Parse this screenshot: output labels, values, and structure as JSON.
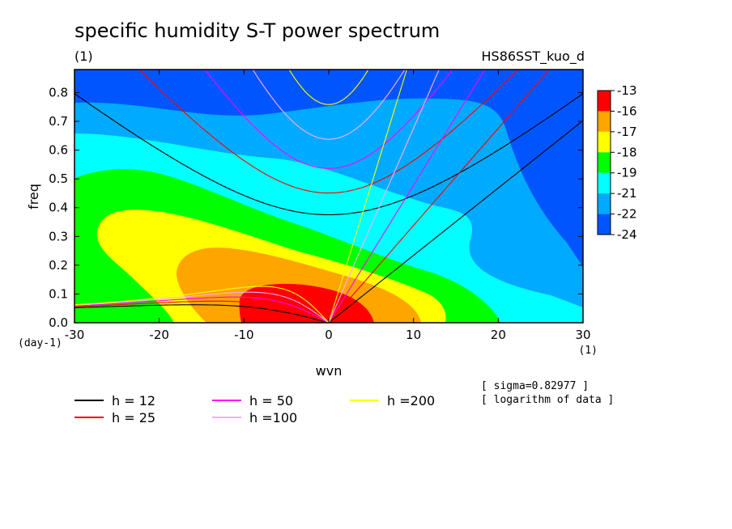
{
  "chart_data": {
    "type": "heatmap",
    "title": "specific humidity S-T power spectrum",
    "subtitle_left": "(1)",
    "subtitle_right": "HS86SST_kuo_d",
    "xlabel": "wvn",
    "ylabel": "freq",
    "x_unit": "(1)",
    "y_unit": "(day-1)",
    "xlim": [
      -30,
      30
    ],
    "ylim": [
      0,
      0.88
    ],
    "x_ticks": [
      -30,
      -20,
      -10,
      0,
      10,
      20,
      30
    ],
    "y_ticks": [
      0.0,
      0.1,
      0.2,
      0.3,
      0.4,
      0.5,
      0.6,
      0.7,
      0.8
    ],
    "colorbar": {
      "labels": [
        "-13",
        "-16",
        "-17",
        "-18",
        "-19",
        "-21",
        "-22",
        "-24"
      ],
      "colors": [
        "#ff0000",
        "#ffa500",
        "#ffff00",
        "#00ff00",
        "#00ffff",
        "#00aaff",
        "#0055ff"
      ]
    },
    "dispersion_curves": [
      {
        "name": "h = 12",
        "h": 12,
        "color": "#000000"
      },
      {
        "name": "h = 25",
        "h": 25,
        "color": "#ff0000"
      },
      {
        "name": "h = 50",
        "h": 50,
        "color": "#ff00ff"
      },
      {
        "name": "h =100",
        "h": 100,
        "color": "#ffaaff"
      },
      {
        "name": "h =200",
        "h": 200,
        "color": "#ffff00"
      }
    ],
    "notes": [
      "[ sigma=0.82977 ]",
      "[ logarithm of data ]"
    ]
  }
}
